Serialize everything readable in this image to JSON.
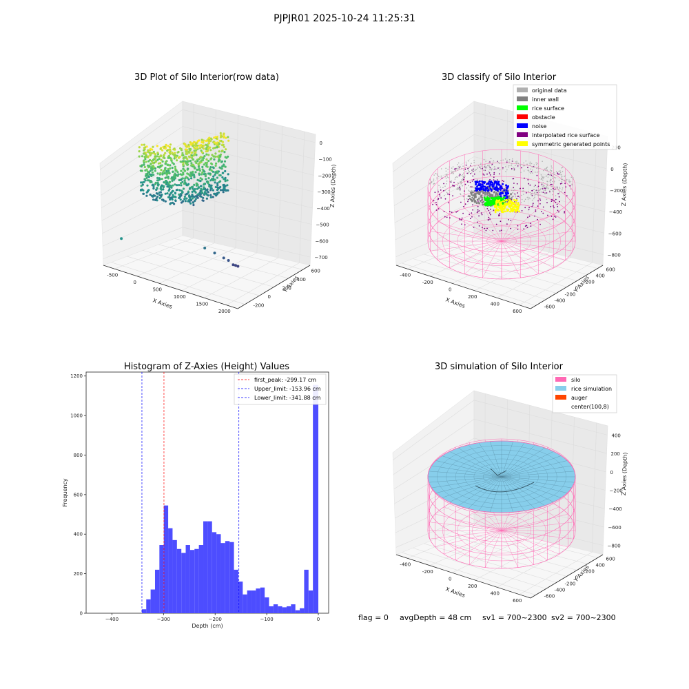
{
  "suptitle": "PJPJR01 2025-10-24 11:25:31",
  "footer": {
    "flag": "flag = 0",
    "avg_depth": "avgDepth = 48 cm",
    "sv1": "sv1 = 700~2300",
    "sv2": "sv2 = 700~2300"
  },
  "colors": {
    "silo": "#ff69b4",
    "rice_simulation": "#87ceeb",
    "auger": "#ff4500",
    "hist_bar": "#4d4dff",
    "original_data": "#b0b0b0",
    "inner_wall": "#808080",
    "rice_surface": "#00ff00",
    "obstacle": "#ff0000",
    "noise": "#0000ff",
    "interpolated": "#800080",
    "symmetric": "#ffff00"
  },
  "chart_data": [
    {
      "type": "scatter",
      "title": "3D Plot of Silo Interior(row data)",
      "xlabel": "X Axies",
      "ylabel": "Y Axies",
      "zlabel": "Z Axies (Depth)",
      "x_ticks": [
        "-500",
        "0",
        "500",
        "1000",
        "1500",
        "2000"
      ],
      "y_ticks": [
        "-200",
        "0",
        "200",
        "400",
        "600"
      ],
      "z_ticks": [
        "0",
        "−100",
        "−200",
        "−300",
        "−400",
        "−500",
        "−600",
        "−700"
      ],
      "outlier_points": [
        {
          "x": -700,
          "y": -150,
          "z": -350
        },
        {
          "x": 900,
          "y": 100,
          "z": -500
        },
        {
          "x": 1100,
          "y": 50,
          "z": -560
        },
        {
          "x": 1300,
          "y": -100,
          "z": -620
        },
        {
          "x": 1400,
          "y": -150,
          "z": -650
        },
        {
          "x": 1500,
          "y": -200,
          "z": -700
        },
        {
          "x": 1550,
          "y": -220,
          "z": -710
        },
        {
          "x": 1600,
          "y": -250,
          "z": -720
        }
      ]
    },
    {
      "type": "scatter",
      "title": "3D classify of Silo Interior",
      "xlabel": "X Axies",
      "ylabel": "Y Axies",
      "zlabel": "Z Axies (Depth)",
      "x_ticks": [
        "-400",
        "-200",
        "0",
        "200",
        "400",
        "600"
      ],
      "y_ticks": [
        "-600",
        "-400",
        "-200",
        "0",
        "200",
        "400",
        "600"
      ],
      "z_ticks": [
        "200",
        "0",
        "−200",
        "−400",
        "−600",
        "−800"
      ],
      "legend": [
        {
          "label": "original data",
          "color": "#b0b0b0"
        },
        {
          "label": "inner wall",
          "color": "#808080"
        },
        {
          "label": "rice surface",
          "color": "#00ff00"
        },
        {
          "label": "obstacle",
          "color": "#ff0000"
        },
        {
          "label": "noise",
          "color": "#0000ff"
        },
        {
          "label": "interpolated rice surface",
          "color": "#800080"
        },
        {
          "label": "symmetric generated points",
          "color": "#ffff00"
        }
      ],
      "legend_position": "top-right"
    },
    {
      "type": "bar",
      "title": "Histogram of Z-Axies (Height) Values",
      "xlabel": "Depth (cm)",
      "ylabel": "Frequency",
      "xlim": [
        -450,
        20
      ],
      "ylim": [
        0,
        1220
      ],
      "x_ticks": [
        -400,
        -300,
        -200,
        -100,
        0
      ],
      "y_ticks": [
        0,
        200,
        400,
        600,
        800,
        1000,
        1200
      ],
      "bin_width": 8.5,
      "bin_start": -342,
      "values": [
        20,
        70,
        120,
        220,
        345,
        545,
        430,
        370,
        325,
        305,
        345,
        320,
        325,
        345,
        465,
        465,
        410,
        400,
        355,
        365,
        360,
        220,
        160,
        95,
        115,
        115,
        125,
        130,
        80,
        35,
        45,
        35,
        30,
        35,
        45,
        15,
        25,
        220,
        115,
        1155
      ],
      "lines": [
        {
          "label": "first_peak: -299.17 cm",
          "x": -299.17,
          "color": "#ff0000"
        },
        {
          "label": "Upper_limit: -153.96 cm",
          "x": -153.96,
          "color": "#0000ff"
        },
        {
          "label": "Lower_limit: -341.88 cm",
          "x": -341.88,
          "color": "#0000ff"
        }
      ],
      "legend_position": "top-right"
    },
    {
      "type": "scatter",
      "title": "3D simulation of Silo Interior",
      "xlabel": "X Axies",
      "ylabel": "Y Axies",
      "zlabel": "Z Axies (Depth)",
      "x_ticks": [
        "-400",
        "-200",
        "0",
        "200",
        "400",
        "600"
      ],
      "y_ticks": [
        "-600",
        "-400",
        "-200",
        "0",
        "200",
        "400",
        "600"
      ],
      "z_ticks": [
        "400",
        "200",
        "0",
        "−200",
        "−400",
        "−600",
        "−800"
      ],
      "legend": [
        {
          "label": "silo",
          "color": "#ff69b4"
        },
        {
          "label": "rice simulation",
          "color": "#87ceeb"
        },
        {
          "label": "auger",
          "color": "#ff4500"
        },
        {
          "label": "center(100,8)",
          "color": ""
        }
      ],
      "legend_position": "top-right"
    }
  ]
}
